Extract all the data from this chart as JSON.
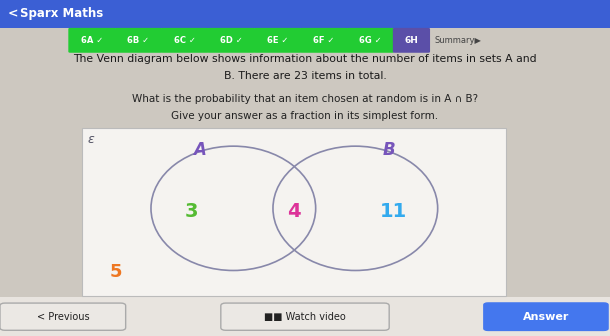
{
  "title": "Sparx Maths",
  "bg_color": "#cdc8c0",
  "header_bg": "#3b5fd4",
  "nav_tabs": [
    "6A",
    "6B",
    "6C",
    "6D",
    "6E",
    "6F",
    "6G"
  ],
  "nav_tab_color": "#22cc33",
  "active_tab": "6H",
  "active_tab_color": "#5b4fa8",
  "summary_text": "Summary▶",
  "description_line1": "The Venn diagram below shows information about the number of items in sets A and",
  "description_line2": "B. There are 23 items in total.",
  "question_line1": "What is the probability that an item chosen at random is in A ∩ B?",
  "question_line2": "Give your answer as a fraction in its simplest form.",
  "venn_box_facecolor": "#f5f3f0",
  "venn_border_color": "#bbbbbb",
  "circle_color": "#8888aa",
  "circle_lw": 1.2,
  "label_A": "A",
  "label_B": "B",
  "label_color": "#7755bb",
  "val_left": "3",
  "val_left_color": "#55bb33",
  "val_center": "4",
  "val_center_color": "#dd3399",
  "val_right": "11",
  "val_right_color": "#33aaee",
  "val_outside": "5",
  "val_outside_color": "#ee7722",
  "epsilon_color": "#555566",
  "prev_btn_text": "< Previous",
  "watch_btn_text": "■■ Watch video",
  "answer_btn_text": "Answer",
  "answer_btn_color": "#4477ee",
  "bottom_bar_color": "#e8e4df"
}
